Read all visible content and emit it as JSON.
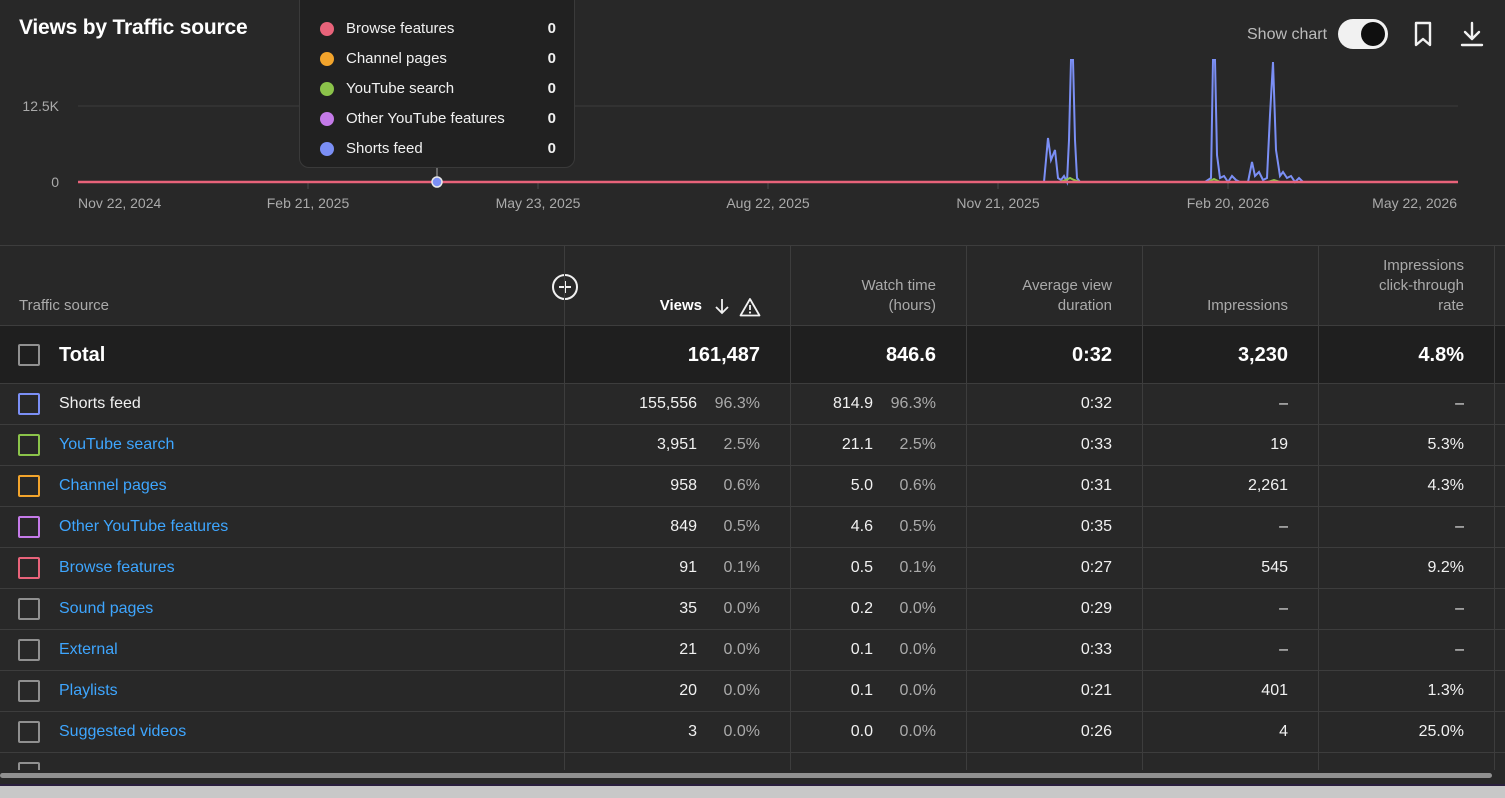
{
  "chart_title": "Views by Traffic source",
  "controls": {
    "show_chart_label": "Show chart",
    "show_chart_on": true
  },
  "tooltip": {
    "items": [
      {
        "label": "Browse features",
        "value": "0",
        "color": "#e8637a"
      },
      {
        "label": "Channel pages",
        "value": "0",
        "color": "#f2a42c"
      },
      {
        "label": "YouTube search",
        "value": "0",
        "color": "#8bc34a"
      },
      {
        "label": "Other YouTube features",
        "value": "0",
        "color": "#c47ae8"
      },
      {
        "label": "Shorts feed",
        "value": "0",
        "color": "#7b8ff5"
      }
    ]
  },
  "chart_data": {
    "type": "line",
    "y_ticks": [
      "12.5K",
      "0"
    ],
    "x_ticks": [
      "Nov 22, 2024",
      "Feb 21, 2025",
      "May 23, 2025",
      "Aug 22, 2025",
      "Nov 21, 2025",
      "Feb 20, 2026",
      "May 22, 2026"
    ],
    "grid": true,
    "colors": {
      "shorts_feed": "#7b8ff5",
      "browse_features": "#e8637a",
      "youtube_search": "#8bc34a"
    }
  },
  "table": {
    "headers": {
      "source": "Traffic source",
      "views": "Views",
      "watch_time": [
        "Watch time",
        "(hours)"
      ],
      "avd": [
        "Average view",
        "duration"
      ],
      "impressions": "Impressions",
      "ctr": [
        "Impressions",
        "click-through",
        "rate"
      ]
    },
    "total": {
      "label": "Total",
      "views": "161,487",
      "watch": "846.6",
      "avd": "0:32",
      "impressions": "3,230",
      "ctr": "4.8%"
    },
    "rows": [
      {
        "name": "Shorts feed",
        "link": false,
        "color": "#7b8ff5",
        "views": "155,556",
        "views_pct": "96.3%",
        "watch": "814.9",
        "watch_pct": "96.3%",
        "avd": "0:32",
        "impressions": "–",
        "ctr": "–"
      },
      {
        "name": "YouTube search",
        "link": true,
        "color": "#8bc34a",
        "views": "3,951",
        "views_pct": "2.5%",
        "watch": "21.1",
        "watch_pct": "2.5%",
        "avd": "0:33",
        "impressions": "19",
        "ctr": "5.3%"
      },
      {
        "name": "Channel pages",
        "link": true,
        "color": "#f2a42c",
        "views": "958",
        "views_pct": "0.6%",
        "watch": "5.0",
        "watch_pct": "0.6%",
        "avd": "0:31",
        "impressions": "2,261",
        "ctr": "4.3%"
      },
      {
        "name": "Other YouTube features",
        "link": true,
        "color": "#c47ae8",
        "views": "849",
        "views_pct": "0.5%",
        "watch": "4.6",
        "watch_pct": "0.5%",
        "avd": "0:35",
        "impressions": "–",
        "ctr": "–"
      },
      {
        "name": "Browse features",
        "link": true,
        "color": "#e8637a",
        "views": "91",
        "views_pct": "0.1%",
        "watch": "0.5",
        "watch_pct": "0.1%",
        "avd": "0:27",
        "impressions": "545",
        "ctr": "9.2%"
      },
      {
        "name": "Sound pages",
        "link": true,
        "color": "#909090",
        "views": "35",
        "views_pct": "0.0%",
        "watch": "0.2",
        "watch_pct": "0.0%",
        "avd": "0:29",
        "impressions": "–",
        "ctr": "–"
      },
      {
        "name": "External",
        "link": true,
        "color": "#909090",
        "views": "21",
        "views_pct": "0.0%",
        "watch": "0.1",
        "watch_pct": "0.0%",
        "avd": "0:33",
        "impressions": "–",
        "ctr": "–"
      },
      {
        "name": "Playlists",
        "link": true,
        "color": "#909090",
        "views": "20",
        "views_pct": "0.0%",
        "watch": "0.1",
        "watch_pct": "0.0%",
        "avd": "0:21",
        "impressions": "401",
        "ctr": "1.3%"
      },
      {
        "name": "Suggested videos",
        "link": true,
        "color": "#909090",
        "views": "3",
        "views_pct": "0.0%",
        "watch": "0.0",
        "watch_pct": "0.0%",
        "avd": "0:26",
        "impressions": "4",
        "ctr": "25.0%"
      }
    ]
  }
}
